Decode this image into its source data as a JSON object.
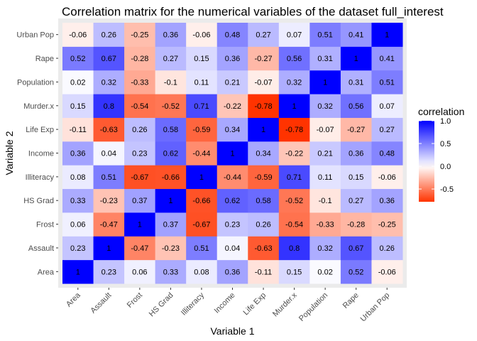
{
  "chart_data": {
    "type": "heatmap",
    "title": "Correlation matrix for the numerical variables of the dataset full_interest",
    "xlabel": "Variable 1",
    "ylabel": "Variable 2",
    "x_categories": [
      "Area",
      "Assault",
      "Frost",
      "HS Grad",
      "Illiteracy",
      "Income",
      "Life Exp",
      "Murder.x",
      "Population",
      "Rape",
      "Urban Pop"
    ],
    "y_categories": [
      "Area",
      "Assault",
      "Frost",
      "HS Grad",
      "Illiteracy",
      "Income",
      "Life Exp",
      "Murder.x",
      "Population",
      "Rape",
      "Urban Pop"
    ],
    "values": [
      [
        1,
        0.23,
        0.06,
        0.33,
        0.08,
        0.36,
        -0.11,
        0.15,
        0.02,
        0.52,
        -0.06
      ],
      [
        0.23,
        1,
        -0.47,
        -0.23,
        0.51,
        0.04,
        -0.63,
        0.8,
        0.32,
        0.67,
        0.26
      ],
      [
        0.06,
        -0.47,
        1,
        0.37,
        -0.67,
        0.23,
        0.26,
        -0.54,
        -0.33,
        -0.28,
        -0.25
      ],
      [
        0.33,
        -0.23,
        0.37,
        1,
        -0.66,
        0.62,
        0.58,
        -0.52,
        -0.1,
        0.27,
        0.36
      ],
      [
        0.08,
        0.51,
        -0.67,
        -0.66,
        1,
        -0.44,
        -0.59,
        0.71,
        0.11,
        0.15,
        -0.06
      ],
      [
        0.36,
        0.04,
        0.23,
        0.62,
        -0.44,
        1,
        0.34,
        -0.22,
        0.21,
        0.36,
        0.48
      ],
      [
        -0.11,
        -0.63,
        0.26,
        0.58,
        -0.59,
        0.34,
        1,
        -0.78,
        -0.07,
        -0.27,
        0.27
      ],
      [
        0.15,
        0.8,
        -0.54,
        -0.52,
        0.71,
        -0.22,
        -0.78,
        1,
        0.32,
        0.56,
        0.07
      ],
      [
        0.02,
        0.32,
        -0.33,
        -0.1,
        0.11,
        0.21,
        -0.07,
        0.32,
        1,
        0.31,
        0.51
      ],
      [
        0.52,
        0.67,
        -0.28,
        0.27,
        0.15,
        0.36,
        -0.27,
        0.56,
        0.31,
        1,
        0.41
      ],
      [
        -0.06,
        0.26,
        -0.25,
        0.36,
        -0.06,
        0.48,
        0.27,
        0.07,
        0.51,
        0.41,
        1
      ]
    ],
    "legend": {
      "title": "correlation",
      "placement": "right",
      "ticks": [
        1.0,
        0.5,
        0.0,
        -0.5
      ],
      "tick_labels": [
        "1.0",
        "0.5",
        "0.0",
        "-0.5"
      ],
      "range": [
        -0.78,
        1
      ]
    },
    "colors": {
      "low": "#ff3300",
      "mid": "#ffffff",
      "high": "#0000ff",
      "panel": "#ebebeb"
    },
    "grid": true
  }
}
